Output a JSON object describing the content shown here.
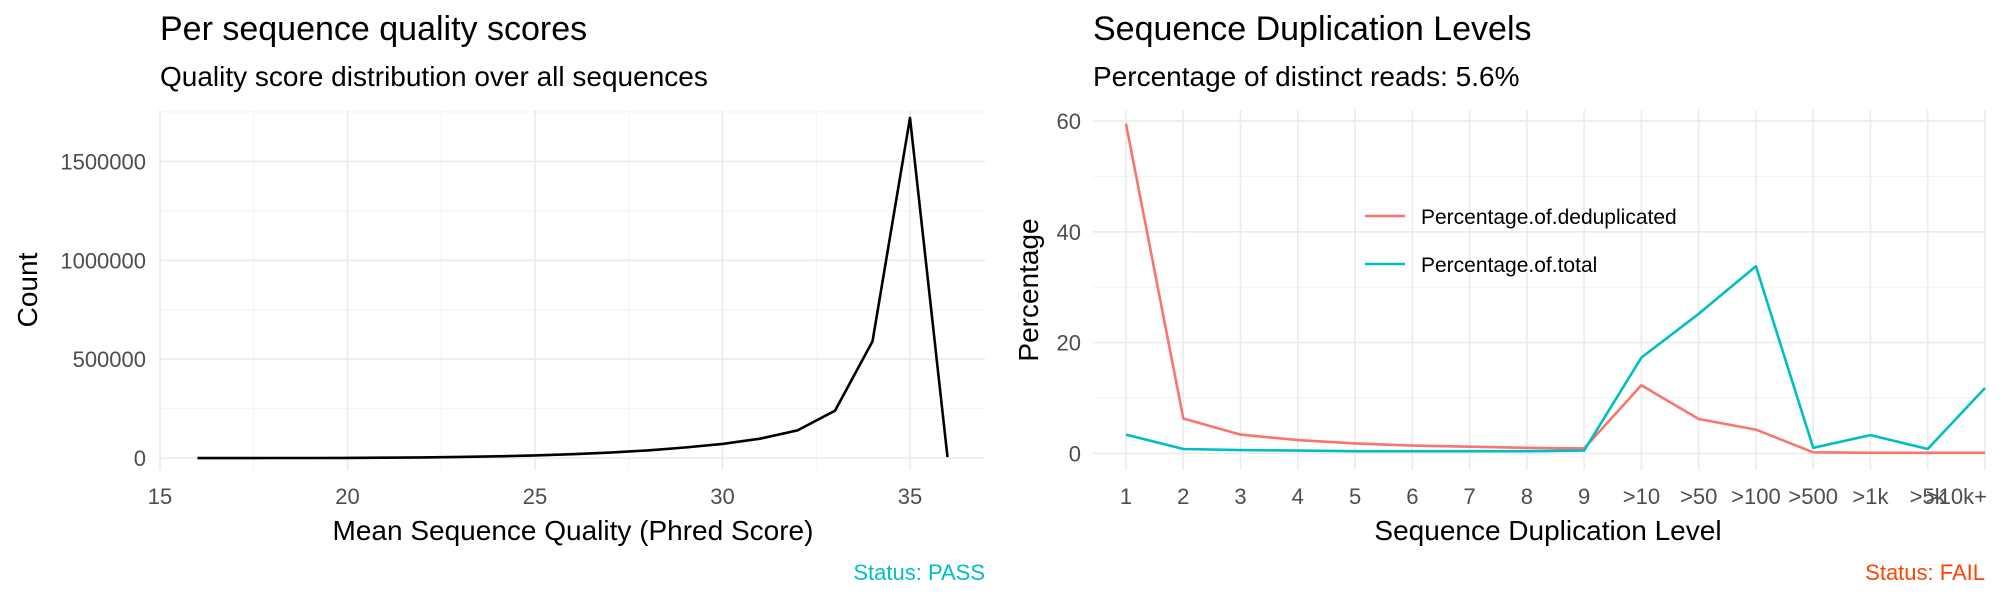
{
  "chart_data": [
    {
      "type": "line",
      "title": "Per sequence quality scores",
      "subtitle": "Quality score distribution over all sequences",
      "xlabel": "Mean Sequence Quality (Phred Score)",
      "ylabel": "Count",
      "xlim": [
        15,
        37
      ],
      "ylim": [
        -60000,
        1760000
      ],
      "x_ticks": [
        15,
        20,
        25,
        30,
        35
      ],
      "x_tick_labels": [
        "15",
        "20",
        "25",
        "30",
        "35"
      ],
      "y_ticks": [
        0,
        500000,
        1000000,
        1500000
      ],
      "y_tick_labels": [
        "0",
        "500000",
        "1000000",
        "1500000"
      ],
      "grid": true,
      "legend": "none",
      "status": "Status: PASS",
      "status_color": "#00BFC4",
      "series": [
        {
          "color": "#000000",
          "x": [
            16,
            17,
            18,
            19,
            20,
            21,
            22,
            23,
            24,
            25,
            26,
            27,
            28,
            29,
            30,
            31,
            32,
            33,
            34,
            35,
            36
          ],
          "values": [
            200,
            300,
            500,
            800,
            1200,
            2000,
            3500,
            6000,
            9500,
            14000,
            20000,
            28000,
            39000,
            54000,
            72000,
            98000,
            140000,
            240000,
            590000,
            1720000,
            5000
          ]
        }
      ]
    },
    {
      "type": "line",
      "title": "Sequence Duplication Levels",
      "subtitle": "Percentage of distinct reads: 5.6%",
      "xlabel": "Sequence Duplication Level",
      "ylabel": "Percentage",
      "categories": [
        "1",
        "2",
        "3",
        "4",
        "5",
        "6",
        "7",
        "8",
        "9",
        ">10",
        ">50",
        ">100",
        ">500",
        ">1k",
        ">5k",
        ">10k+"
      ],
      "ylim": [
        -3,
        62
      ],
      "y_ticks": [
        0,
        20,
        40,
        60
      ],
      "y_tick_labels": [
        "0",
        "20",
        "40",
        "60"
      ],
      "grid": true,
      "legend": "inside-top-center",
      "status": "Status: FAIL",
      "status_color": "#FF4500",
      "series": [
        {
          "name": "Percentage.of.deduplicated",
          "color": "#F8766D",
          "values": [
            59.5,
            6.3,
            3.4,
            2.4,
            1.8,
            1.4,
            1.2,
            1.0,
            0.9,
            12.3,
            6.2,
            4.3,
            0.2,
            0.1,
            0.1,
            0.1
          ]
        },
        {
          "name": "Percentage.of.total",
          "color": "#00BFC4",
          "values": [
            3.4,
            0.8,
            0.6,
            0.5,
            0.4,
            0.4,
            0.4,
            0.4,
            0.5,
            17.3,
            25.2,
            33.8,
            1.0,
            3.3,
            0.8,
            11.8
          ]
        }
      ]
    }
  ]
}
